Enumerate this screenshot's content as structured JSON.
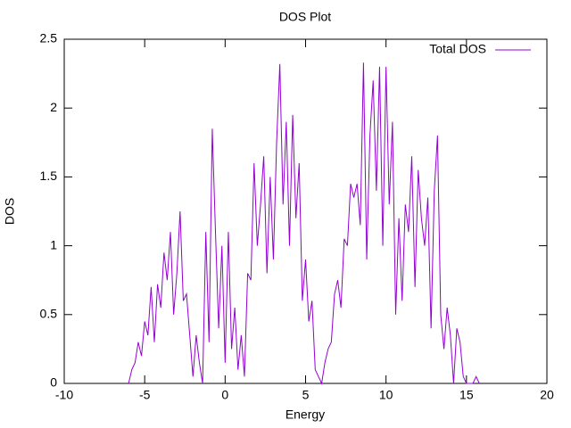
{
  "chart_data": {
    "type": "line",
    "title": "DOS Plot",
    "x_label": "Energy",
    "y_label": "DOS",
    "x": [
      -6.0,
      -5.8,
      -5.6,
      -5.4,
      -5.2,
      -5.0,
      -4.8,
      -4.6,
      -4.4,
      -4.2,
      -4.0,
      -3.8,
      -3.6,
      -3.4,
      -3.2,
      -3.0,
      -2.8,
      -2.6,
      -2.4,
      -2.2,
      -2.0,
      -1.8,
      -1.6,
      -1.4,
      -1.2,
      -1.0,
      -0.8,
      -0.6,
      -0.4,
      -0.2,
      0.0,
      0.2,
      0.4,
      0.6,
      0.8,
      1.0,
      1.2,
      1.4,
      1.6,
      1.8,
      2.0,
      2.2,
      2.4,
      2.6,
      2.8,
      3.0,
      3.2,
      3.4,
      3.6,
      3.8,
      4.0,
      4.2,
      4.4,
      4.6,
      4.8,
      5.0,
      5.2,
      5.4,
      5.6,
      5.8,
      6.0,
      6.2,
      6.4,
      6.6,
      6.8,
      7.0,
      7.2,
      7.4,
      7.6,
      7.8,
      8.0,
      8.2,
      8.4,
      8.6,
      8.8,
      9.0,
      9.2,
      9.4,
      9.6,
      9.8,
      10.0,
      10.2,
      10.4,
      10.6,
      10.8,
      11.0,
      11.2,
      11.4,
      11.6,
      11.8,
      12.0,
      12.2,
      12.4,
      12.6,
      12.8,
      13.0,
      13.2,
      13.4,
      13.6,
      13.8,
      14.0,
      14.2,
      14.4,
      14.6,
      14.8,
      15.0,
      15.2,
      15.4,
      15.6,
      15.8
    ],
    "series": [
      {
        "name": "Total DOS",
        "color": "#9400d3",
        "values": [
          0,
          0.1,
          0.15,
          0.3,
          0.2,
          0.45,
          0.35,
          0.7,
          0.3,
          0.72,
          0.55,
          0.95,
          0.75,
          1.1,
          0.5,
          0.8,
          1.25,
          0.6,
          0.65,
          0.35,
          0.05,
          0.35,
          0.15,
          0,
          1.1,
          0.3,
          1.85,
          1.1,
          0.4,
          1.0,
          0.15,
          1.1,
          0.25,
          0.55,
          0.1,
          0.35,
          0.05,
          0.8,
          0.75,
          1.6,
          1.0,
          1.3,
          1.65,
          0.8,
          1.5,
          0.9,
          1.75,
          2.32,
          1.3,
          1.9,
          1.0,
          1.95,
          1.2,
          1.6,
          0.6,
          0.9,
          0.45,
          0.6,
          0.1,
          0.05,
          0,
          0.15,
          0.25,
          0.3,
          0.65,
          0.75,
          0.55,
          1.05,
          1.0,
          1.45,
          1.35,
          1.45,
          1.15,
          2.33,
          0.9,
          1.8,
          2.2,
          1.4,
          2.3,
          1.0,
          2.3,
          1.3,
          1.9,
          0.5,
          1.2,
          0.6,
          1.3,
          1.1,
          1.65,
          0.7,
          1.55,
          1.2,
          1.0,
          1.35,
          0.4,
          1.4,
          1.8,
          0.5,
          0.25,
          0.55,
          0.35,
          0,
          0.4,
          0.3,
          0.05,
          0,
          0,
          0,
          0.05,
          0
        ]
      }
    ],
    "xlim": [
      -10,
      20
    ],
    "xticks": [
      -10,
      -5,
      0,
      5,
      10,
      15,
      20
    ],
    "ylim": [
      0,
      2.5
    ],
    "yticks": [
      0,
      0.5,
      1,
      1.5,
      2,
      2.5
    ],
    "grid": false,
    "legend": "top-right"
  }
}
